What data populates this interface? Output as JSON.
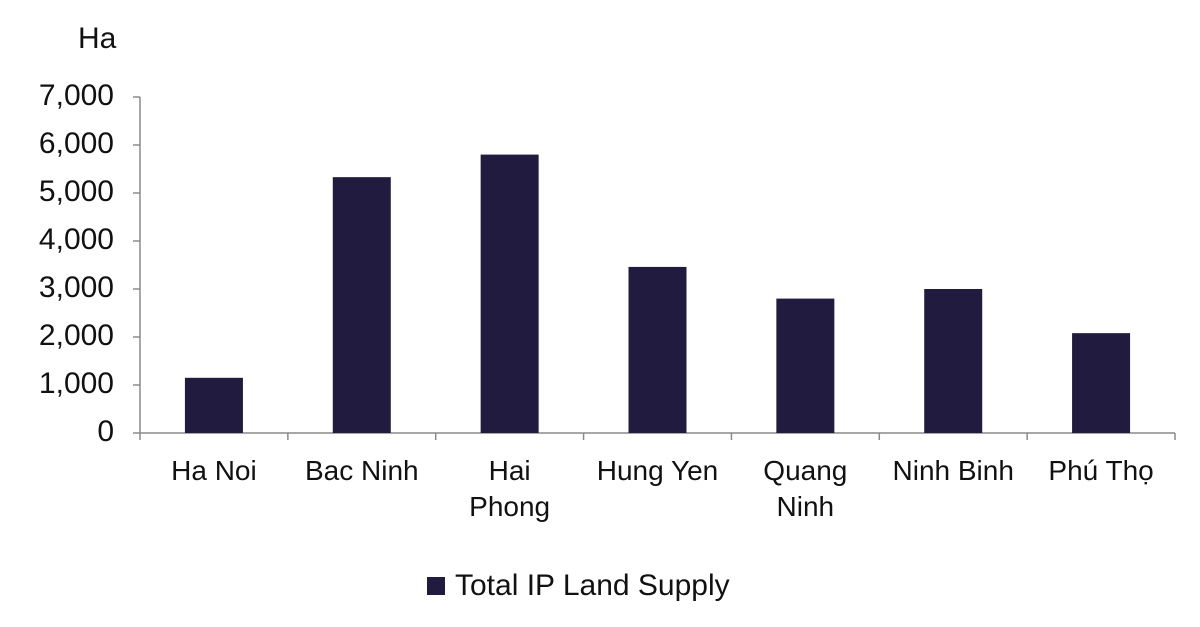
{
  "chart_data": {
    "type": "bar",
    "y_unit": "Ha",
    "categories": [
      "Ha Noi",
      "Bac Ninh",
      "Hai\nPhong",
      "Hung Yen",
      "Quang\nNinh",
      "Ninh Binh",
      "Phú Thọ"
    ],
    "series": [
      {
        "name": "Total IP Land Supply",
        "color": "#201b3f",
        "values": [
          1150,
          5330,
          5800,
          3460,
          2800,
          3000,
          2080
        ]
      }
    ],
    "ylim": [
      0,
      7000
    ],
    "yticks": [
      0,
      {
        "value": 1000,
        "label": "1,000"
      },
      {
        "value": 2000,
        "label": "2,000"
      },
      {
        "value": 3000,
        "label": "3,000"
      },
      {
        "value": 4000,
        "label": "4,000"
      },
      {
        "value": 5000,
        "label": "5,000"
      },
      {
        "value": 6000,
        "label": "6,000"
      },
      {
        "value": 7000,
        "label": "7,000"
      }
    ],
    "grid": false
  }
}
